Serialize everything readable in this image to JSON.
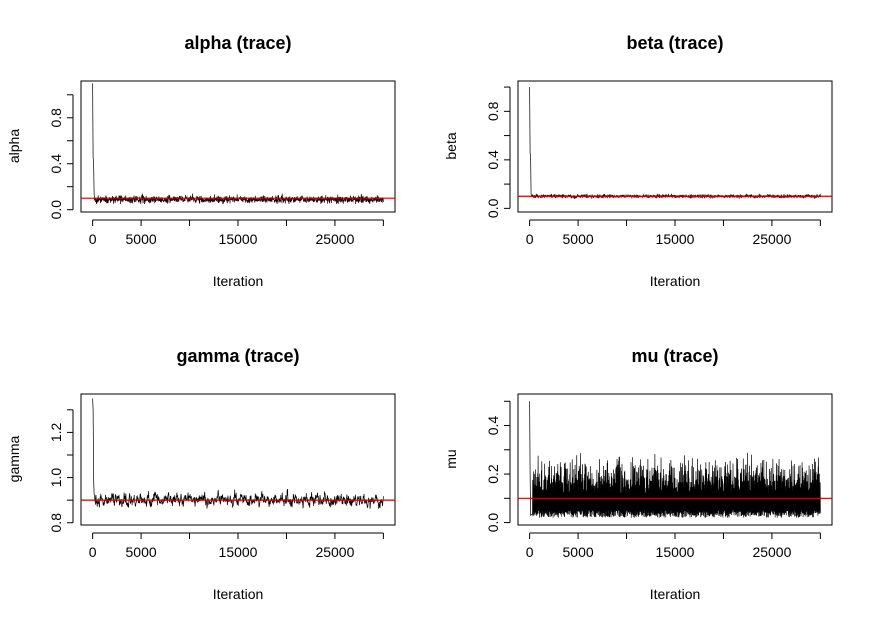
{
  "chart_data": [
    {
      "type": "line",
      "title": "alpha (trace)",
      "xlabel": "Iteration",
      "ylabel": "alpha",
      "xlim": [
        -1200,
        31200
      ],
      "ylim": [
        -0.02,
        1.12
      ],
      "xticks": [
        0,
        5000,
        15000,
        25000
      ],
      "xtick_marks": [
        0,
        5000,
        10000,
        15000,
        20000,
        25000,
        30000
      ],
      "yticks": [
        0.0,
        0.4,
        0.8
      ],
      "ytick_marks": [
        0.0,
        0.2,
        0.4,
        0.6,
        0.8,
        1.0
      ],
      "ytick_labels": [
        "0.0",
        "0.4",
        "0.8"
      ],
      "reference_line": 0.1,
      "reference_color": "#cc0000",
      "series": [
        {
          "color": "#000000",
          "summary": {
            "iterations": 30000,
            "initial_value": 1.1,
            "burn_in_peak": 0.45,
            "center": 0.09,
            "range": [
              0.05,
              0.14
            ]
          },
          "x": [
            0,
            50,
            100,
            150,
            200,
            300,
            400,
            500,
            1000,
            2000,
            3000,
            4000,
            5000,
            6000,
            7000,
            8000,
            9000,
            10000,
            11000,
            12000,
            13000,
            14000,
            15000,
            16000,
            17000,
            18000,
            19000,
            20000,
            21000,
            22000,
            23000,
            24000,
            25000,
            26000,
            27000,
            28000,
            29000,
            30000
          ],
          "y": [
            1.1,
            0.45,
            0.42,
            0.15,
            0.08,
            0.1,
            0.07,
            0.11,
            0.09,
            0.1,
            0.08,
            0.09,
            0.1,
            0.08,
            0.11,
            0.09,
            0.07,
            0.1,
            0.09,
            0.08,
            0.12,
            0.09,
            0.1,
            0.08,
            0.09,
            0.11,
            0.07,
            0.1,
            0.09,
            0.08,
            0.1,
            0.09,
            0.11,
            0.08,
            0.09,
            0.12,
            0.08,
            0.09
          ]
        }
      ]
    },
    {
      "type": "line",
      "title": "beta (trace)",
      "xlabel": "Iteration",
      "ylabel": "beta",
      "xlim": [
        -1200,
        31200
      ],
      "ylim": [
        -0.03,
        1.05
      ],
      "xticks": [
        0,
        5000,
        15000,
        25000
      ],
      "xtick_marks": [
        0,
        5000,
        10000,
        15000,
        20000,
        25000,
        30000
      ],
      "yticks": [
        0.0,
        0.4,
        0.8
      ],
      "ytick_marks": [
        0.0,
        0.2,
        0.4,
        0.6,
        0.8,
        1.0
      ],
      "ytick_labels": [
        "0.0",
        "0.4",
        "0.8"
      ],
      "reference_line": 0.1,
      "reference_color": "#cc0000",
      "series": [
        {
          "color": "#000000",
          "summary": {
            "iterations": 30000,
            "initial_value": 1.0,
            "burn_in_peak": 0.45,
            "center": 0.1,
            "range": [
              0.08,
              0.12
            ]
          },
          "x": [
            0,
            50,
            100,
            150,
            200,
            300,
            500,
            1000,
            2000,
            3000,
            4000,
            5000,
            6000,
            7000,
            8000,
            9000,
            10000,
            11000,
            12000,
            13000,
            14000,
            15000,
            16000,
            17000,
            18000,
            19000,
            20000,
            21000,
            22000,
            23000,
            24000,
            25000,
            26000,
            27000,
            28000,
            29000,
            30000
          ],
          "y": [
            1.0,
            0.45,
            0.44,
            0.12,
            0.1,
            0.11,
            0.09,
            0.1,
            0.11,
            0.1,
            0.09,
            0.1,
            0.11,
            0.1,
            0.1,
            0.09,
            0.11,
            0.1,
            0.1,
            0.09,
            0.11,
            0.1,
            0.1,
            0.11,
            0.09,
            0.1,
            0.1,
            0.11,
            0.1,
            0.09,
            0.1,
            0.11,
            0.1,
            0.1,
            0.09,
            0.11,
            0.1
          ]
        }
      ]
    },
    {
      "type": "line",
      "title": "gamma (trace)",
      "xlabel": "Iteration",
      "ylabel": "gamma",
      "xlim": [
        -1200,
        31200
      ],
      "ylim": [
        0.79,
        1.37
      ],
      "xticks": [
        0,
        5000,
        15000,
        25000
      ],
      "xtick_marks": [
        0,
        5000,
        10000,
        15000,
        20000,
        25000,
        30000
      ],
      "yticks": [
        0.8,
        1.0,
        1.2
      ],
      "ytick_marks": [
        0.8,
        0.9,
        1.0,
        1.1,
        1.2,
        1.3
      ],
      "ytick_labels": [
        "0.8",
        "1.0",
        "1.2"
      ],
      "reference_line": 0.9,
      "reference_color": "#cc0000",
      "series": [
        {
          "color": "#000000",
          "summary": {
            "iterations": 30000,
            "initial_value": 1.35,
            "burn_in_peak": 1.3,
            "center": 0.9,
            "range": [
              0.83,
              1.01
            ]
          },
          "x": [
            0,
            50,
            100,
            150,
            300,
            600,
            1000,
            1500,
            2000,
            3000,
            4000,
            5000,
            6000,
            7000,
            8000,
            9000,
            10000,
            11000,
            12000,
            13000,
            14000,
            15000,
            16000,
            17000,
            18000,
            19000,
            20000,
            21000,
            22000,
            23000,
            24000,
            25000,
            26000,
            27000,
            28000,
            29000,
            30000
          ],
          "y": [
            1.35,
            1.3,
            1.0,
            0.93,
            0.88,
            0.91,
            0.99,
            0.88,
            0.92,
            0.86,
            0.9,
            0.89,
            0.91,
            0.87,
            0.92,
            0.96,
            0.85,
            0.93,
            0.88,
            0.9,
            0.97,
            0.88,
            0.92,
            0.86,
            0.91,
            0.95,
            0.87,
            0.9,
            0.98,
            0.88,
            0.93,
            0.87,
            0.9,
            0.96,
            0.88,
            0.91,
            0.99
          ]
        }
      ]
    },
    {
      "type": "line",
      "title": "mu (trace)",
      "xlabel": "Iteration",
      "ylabel": "mu",
      "xlim": [
        -1200,
        31200
      ],
      "ylim": [
        -0.01,
        0.53
      ],
      "xticks": [
        0,
        5000,
        15000,
        25000
      ],
      "xtick_marks": [
        0,
        5000,
        10000,
        15000,
        20000,
        25000,
        30000
      ],
      "yticks": [
        0.0,
        0.2,
        0.4
      ],
      "ytick_marks": [
        0.0,
        0.1,
        0.2,
        0.3,
        0.4,
        0.5
      ],
      "ytick_labels": [
        "0.0",
        "0.2",
        "0.4"
      ],
      "reference_line": 0.1,
      "reference_color": "#cc0000",
      "series": [
        {
          "color": "#000000",
          "summary": {
            "iterations": 30000,
            "initial_value": 0.5,
            "center": 0.1,
            "range": [
              0.02,
              0.29
            ]
          },
          "x": [
            0,
            50,
            100,
            500,
            1000,
            2000,
            3000,
            4000,
            5000,
            6000,
            7000,
            8000,
            9000,
            10000,
            11000,
            12000,
            13000,
            14000,
            15000,
            16000,
            17000,
            18000,
            19000,
            20000,
            21000,
            22000,
            23000,
            24000,
            25000,
            26000,
            27000,
            28000,
            29000,
            30000
          ],
          "y": [
            0.5,
            0.2,
            0.03,
            0.24,
            0.02,
            0.22,
            0.03,
            0.25,
            0.02,
            0.21,
            0.03,
            0.26,
            0.02,
            0.23,
            0.03,
            0.24,
            0.02,
            0.22,
            0.03,
            0.25,
            0.02,
            0.23,
            0.03,
            0.26,
            0.02,
            0.24,
            0.03,
            0.22,
            0.02,
            0.25,
            0.03,
            0.29,
            0.02,
            0.23
          ]
        }
      ]
    }
  ]
}
